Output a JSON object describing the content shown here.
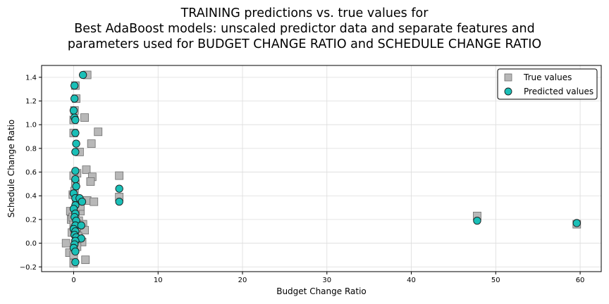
{
  "chart_data": {
    "type": "scatter",
    "title": [
      "TRAINING predictions vs. true values for",
      "Best AdaBoost models: unscaled predictor data and separate features and",
      "parameters used for BUDGET CHANGE RATIO and SCHEDULE CHANGE RATIO"
    ],
    "xlabel": "Budget Change Ratio",
    "ylabel": "Schedule Change Ratio",
    "xlim": [
      -3.8,
      62.5
    ],
    "ylim": [
      -0.24,
      1.5
    ],
    "xticks": [
      "0",
      "10",
      "20",
      "30",
      "40",
      "50",
      "60"
    ],
    "yticks": [
      "−0.2",
      "0.0",
      "0.2",
      "0.4",
      "0.6",
      "0.8",
      "1.0",
      "1.2",
      "1.4"
    ],
    "grid": true,
    "legend_position": "top-right",
    "series": [
      {
        "name": "True values",
        "marker": "square",
        "color": "#b8b8b8",
        "edge": "#6e6e6e",
        "points": [
          [
            1.6,
            1.42
          ],
          [
            0.2,
            1.33
          ],
          [
            0.3,
            1.22
          ],
          [
            0.1,
            1.12
          ],
          [
            1.3,
            1.06
          ],
          [
            0.0,
            1.04
          ],
          [
            2.9,
            0.94
          ],
          [
            0.0,
            0.93
          ],
          [
            2.1,
            0.84
          ],
          [
            0.7,
            0.77
          ],
          [
            1.5,
            0.62
          ],
          [
            0.4,
            0.59
          ],
          [
            2.2,
            0.56
          ],
          [
            0.0,
            0.57
          ],
          [
            2.0,
            0.52
          ],
          [
            0.2,
            0.5
          ],
          [
            0.1,
            0.44
          ],
          [
            -0.1,
            0.41
          ],
          [
            0.3,
            0.37
          ],
          [
            1.6,
            0.36
          ],
          [
            2.4,
            0.35
          ],
          [
            0.5,
            0.33
          ],
          [
            -0.4,
            0.27
          ],
          [
            0.8,
            0.27
          ],
          [
            0.2,
            0.25
          ],
          [
            -0.3,
            0.2
          ],
          [
            0.6,
            0.19
          ],
          [
            0.0,
            0.16
          ],
          [
            0.4,
            0.14
          ],
          [
            1.1,
            0.16
          ],
          [
            1.3,
            0.11
          ],
          [
            -0.2,
            0.09
          ],
          [
            0.3,
            0.07
          ],
          [
            0.6,
            0.04
          ],
          [
            1.0,
            0.01
          ],
          [
            0.2,
            0.0
          ],
          [
            -0.9,
            0.0
          ],
          [
            0.4,
            -0.03
          ],
          [
            -0.5,
            -0.08
          ],
          [
            0.0,
            -0.1
          ],
          [
            1.4,
            -0.14
          ],
          [
            0.0,
            -0.17
          ],
          [
            0.8,
            0.31
          ],
          [
            0.1,
            0.12
          ],
          [
            -0.1,
            0.22
          ],
          [
            0.5,
            0.06
          ],
          [
            5.4,
            0.57
          ],
          [
            5.4,
            0.39
          ],
          [
            47.8,
            0.23
          ],
          [
            59.6,
            0.16
          ]
        ]
      },
      {
        "name": "Predicted values",
        "marker": "circle",
        "color": "#1abfb7",
        "edge": "#1a1a1a",
        "points": [
          [
            1.1,
            1.42
          ],
          [
            0.1,
            1.33
          ],
          [
            0.1,
            1.22
          ],
          [
            0.0,
            1.12
          ],
          [
            0.1,
            1.06
          ],
          [
            0.2,
            1.04
          ],
          [
            0.2,
            0.93
          ],
          [
            0.3,
            0.84
          ],
          [
            0.2,
            0.77
          ],
          [
            0.2,
            0.61
          ],
          [
            0.2,
            0.54
          ],
          [
            0.3,
            0.48
          ],
          [
            0.0,
            0.42
          ],
          [
            0.2,
            0.38
          ],
          [
            0.7,
            0.38
          ],
          [
            1.0,
            0.35
          ],
          [
            0.2,
            0.32
          ],
          [
            0.0,
            0.29
          ],
          [
            0.2,
            0.25
          ],
          [
            0.1,
            0.22
          ],
          [
            0.3,
            0.19
          ],
          [
            0.2,
            0.15
          ],
          [
            0.9,
            0.15
          ],
          [
            0.0,
            0.12
          ],
          [
            0.2,
            0.1
          ],
          [
            0.1,
            0.07
          ],
          [
            0.3,
            0.05
          ],
          [
            0.9,
            0.04
          ],
          [
            0.2,
            0.02
          ],
          [
            0.1,
            -0.01
          ],
          [
            0.0,
            -0.04
          ],
          [
            0.2,
            -0.07
          ],
          [
            0.2,
            -0.16
          ],
          [
            5.4,
            0.46
          ],
          [
            5.4,
            0.35
          ],
          [
            47.8,
            0.19
          ],
          [
            59.6,
            0.17
          ]
        ]
      }
    ]
  }
}
